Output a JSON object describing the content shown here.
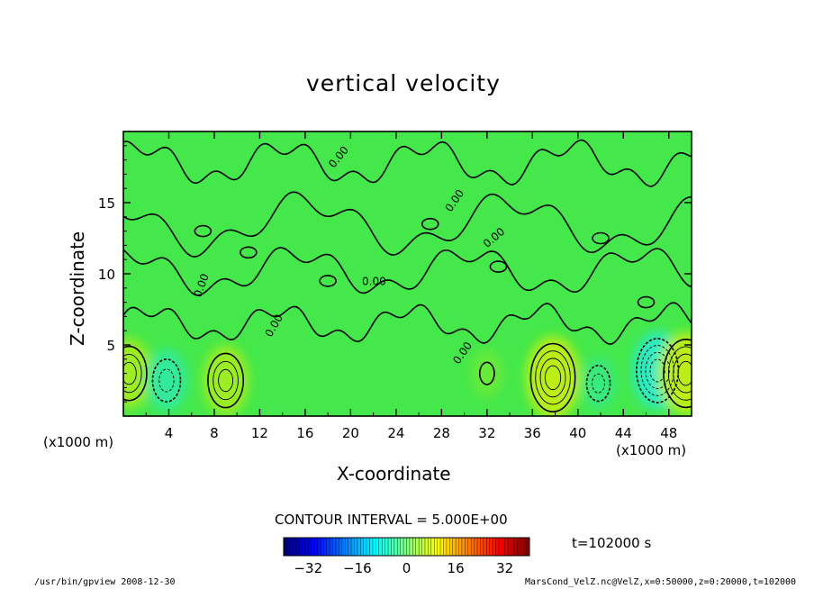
{
  "chart_data": {
    "type": "heatmap",
    "title": "vertical velocity",
    "xlabel": "X-coordinate",
    "ylabel": "Z-coordinate",
    "x_unit_left": "(x1000 m)",
    "x_unit_right": "(x1000 m)",
    "x_ticks": [
      "4",
      "8",
      "12",
      "16",
      "20",
      "24",
      "28",
      "32",
      "36",
      "40",
      "44",
      "48"
    ],
    "x_tick_values": [
      4,
      8,
      12,
      16,
      20,
      24,
      28,
      32,
      36,
      40,
      44,
      48
    ],
    "y_ticks": [
      "5",
      "10",
      "15"
    ],
    "y_tick_values": [
      5,
      10,
      15
    ],
    "xlim": [
      0,
      50
    ],
    "ylim": [
      0,
      20
    ],
    "contour_label": "0.00",
    "contour_interval_text": "CONTOUR INTERVAL = 5.000E+00",
    "time_text": "t=102000 s",
    "colorbar": {
      "ticks": [
        "−32",
        "−16",
        "0",
        "16",
        "32"
      ],
      "tick_values": [
        -32,
        -16,
        0,
        16,
        32
      ],
      "range": [
        -40,
        40
      ]
    },
    "extrema": [
      {
        "x": 0.5,
        "z": 3.0,
        "value": 15,
        "sign": "positive"
      },
      {
        "x": 3.8,
        "z": 2.5,
        "value": -12,
        "sign": "negative"
      },
      {
        "x": 9.0,
        "z": 2.5,
        "value": 15,
        "sign": "positive"
      },
      {
        "x": 32.0,
        "z": 3.0,
        "value": 6,
        "sign": "positive"
      },
      {
        "x": 37.8,
        "z": 2.7,
        "value": 20,
        "sign": "positive"
      },
      {
        "x": 41.8,
        "z": 2.3,
        "value": -8,
        "sign": "negative"
      },
      {
        "x": 47.0,
        "z": 3.2,
        "value": -18,
        "sign": "negative"
      },
      {
        "x": 49.5,
        "z": 3.0,
        "value": 20,
        "sign": "positive"
      }
    ],
    "field_color": "#44e84a"
  },
  "footer": {
    "left": "/usr/bin/gpview   2008-12-30",
    "right": "MarsCond_VelZ.nc@VelZ,x=0:50000,z=0:20000,t=102000"
  }
}
